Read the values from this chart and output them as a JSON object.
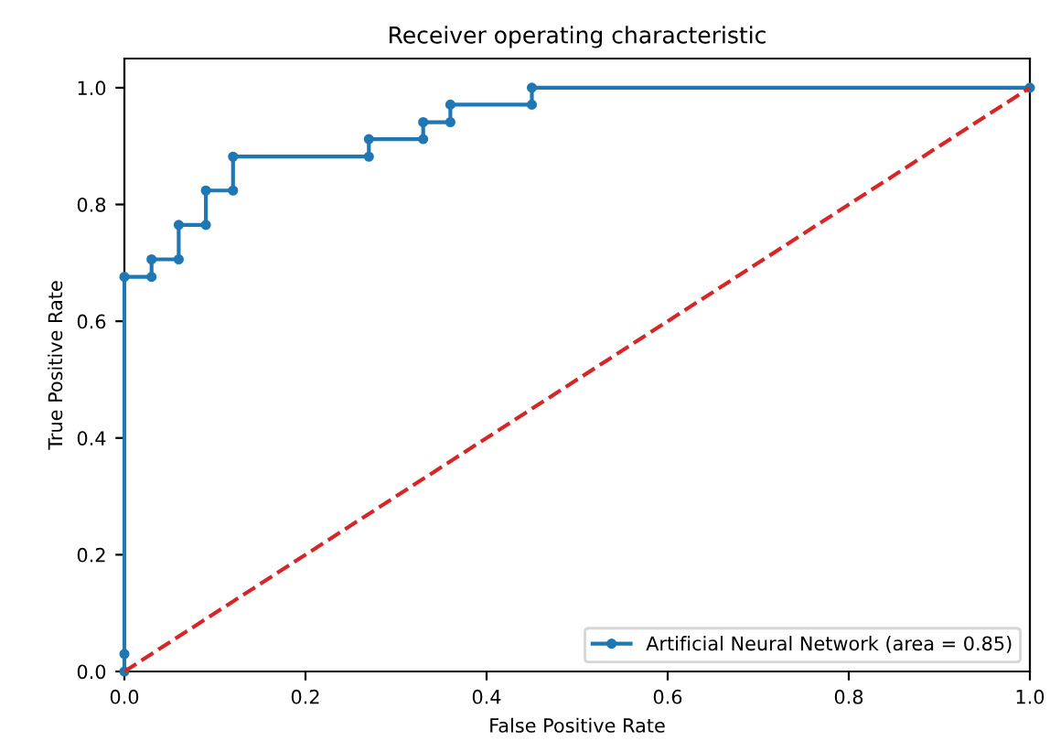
{
  "chart_data": {
    "type": "line",
    "title": "Receiver operating characteristic",
    "xlabel": "False Positive Rate",
    "ylabel": "True Positive Rate",
    "xlim": [
      0,
      1
    ],
    "ylim": [
      0,
      1.05
    ],
    "xticks": [
      {
        "value": 0,
        "label": "0.0"
      },
      0.2,
      0.4,
      0.6,
      0.8,
      {
        "value": 1,
        "label": "1.0"
      }
    ],
    "yticks": [
      {
        "value": 0,
        "label": "0.0"
      },
      0.2,
      0.4,
      0.6,
      0.8,
      {
        "value": 1,
        "label": "1.0"
      }
    ],
    "legend": "bottom right",
    "grid": false,
    "series": [
      {
        "name": "Artificial Neural Network (area = 0.85)",
        "color": "#1f77b4",
        "marker": "circle",
        "line_style": "solid",
        "x": [
          0,
          0,
          0,
          0.03,
          0.03,
          0.06,
          0.06,
          0.09,
          0.09,
          0.12,
          0.12,
          0.27,
          0.27,
          0.33,
          0.33,
          0.36,
          0.36,
          0.45,
          0.45,
          1.0
        ],
        "values": [
          0,
          0.03,
          0.676,
          0.676,
          0.706,
          0.706,
          0.765,
          0.765,
          0.824,
          0.824,
          0.882,
          0.882,
          0.912,
          0.912,
          0.941,
          0.941,
          0.971,
          0.971,
          1.0,
          1.0
        ]
      },
      {
        "color": "#d62728",
        "marker": "none",
        "line_style": "dashed",
        "x": [
          0,
          1
        ],
        "values": [
          0,
          1
        ]
      }
    ]
  }
}
